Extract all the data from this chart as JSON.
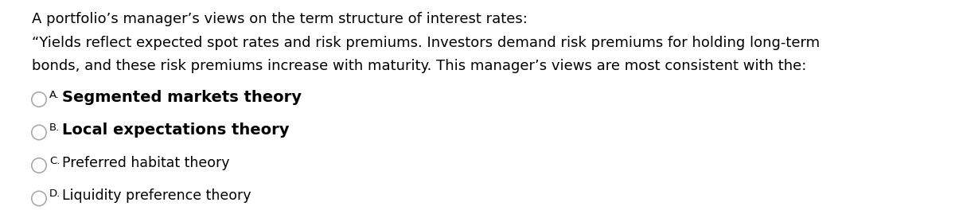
{
  "background_color": "#ffffff",
  "title_line": "A portfolio’s manager’s views on the term structure of interest rates:",
  "body_lines": [
    "“Yields reflect expected spot rates and risk premiums. Investors demand risk premiums for holding long-term",
    "bonds, and these risk premiums increase with maturity. This manager’s views are most consistent with the:"
  ],
  "options": [
    {
      "label": "A.",
      "text": "Segmented markets theory",
      "bold": true,
      "large": true
    },
    {
      "label": "B.",
      "text": "Local expectations theory",
      "bold": true,
      "large": true
    },
    {
      "label": "C.",
      "text": "Preferred habitat theory",
      "bold": false,
      "large": false
    },
    {
      "label": "D.",
      "text": "Liquidity preference theory",
      "bold": false,
      "large": false
    }
  ],
  "title_fontsize": 13.0,
  "body_fontsize": 13.0,
  "option_label_fontsize": 9.5,
  "option_fontsize_large": 14.0,
  "option_fontsize_small": 12.5,
  "text_color": "#000000",
  "circle_edge_color": "#aaaaaa",
  "circle_linewidth": 1.2,
  "font_family": "DejaVu Sans"
}
